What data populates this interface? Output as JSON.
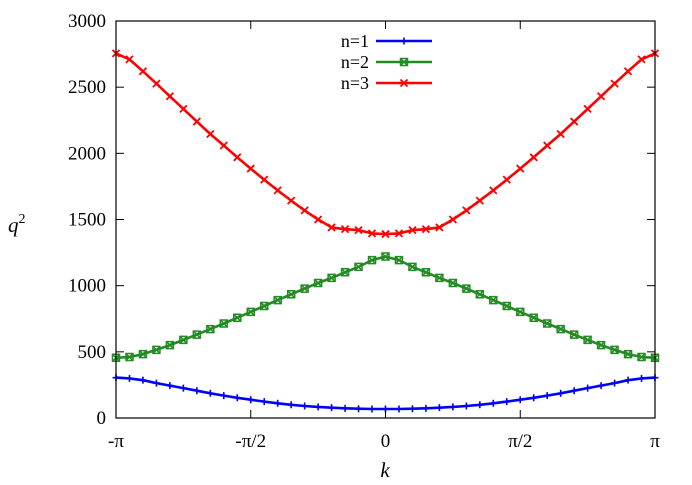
{
  "chart_data": {
    "type": "line",
    "title": "",
    "xlabel": "k",
    "ylabel": "q",
    "ylabel_superscript": "2",
    "xlim": [
      -3.14159,
      3.14159
    ],
    "ylim": [
      0,
      3000
    ],
    "x_ticks": [
      {
        "value": -3.14159,
        "label": "-π"
      },
      {
        "value": -1.5708,
        "label": "-π/2"
      },
      {
        "value": 0,
        "label": "0"
      },
      {
        "value": 1.5708,
        "label": "π/2"
      },
      {
        "value": 3.14159,
        "label": "π"
      }
    ],
    "y_ticks": [
      0,
      500,
      1000,
      1500,
      2000,
      2500,
      3000
    ],
    "grid": false,
    "legend_position": "top-center",
    "series": [
      {
        "name": "n=1",
        "color": "#0000ff",
        "marker": "plus",
        "values_at_pi": 305,
        "value_at_zero": 68
      },
      {
        "name": "n=2",
        "color": "#228b22",
        "marker": "boxed-x",
        "values_at_pi": 455,
        "value_at_zero": 1220
      },
      {
        "name": "n=3",
        "color": "#ff0000",
        "marker": "x",
        "values_at_pi": 2755,
        "value_at_zero": 1390
      }
    ],
    "x": [
      -3.1416,
      -2.9845,
      -2.8274,
      -2.6704,
      -2.5133,
      -2.3562,
      -2.1991,
      -2.042,
      -1.885,
      -1.7279,
      -1.5708,
      -1.4137,
      -1.2566,
      -1.0996,
      -0.9425,
      -0.7854,
      -0.6283,
      -0.4712,
      -0.3142,
      -0.1571,
      0.0,
      0.1571,
      0.3142,
      0.4712,
      0.6283,
      0.7854,
      0.9425,
      1.0996,
      1.2566,
      1.4137,
      1.5708,
      1.7279,
      1.885,
      2.042,
      2.1991,
      2.3562,
      2.5133,
      2.6704,
      2.8274,
      2.9845,
      3.1416
    ],
    "y": {
      "n=1": [
        305,
        299,
        286,
        264,
        245,
        226,
        206,
        187,
        169,
        153,
        138,
        124,
        111,
        100,
        91,
        84,
        78,
        73,
        70,
        68,
        68,
        68,
        70,
        73,
        78,
        84,
        91,
        100,
        111,
        124,
        138,
        153,
        169,
        187,
        206,
        226,
        245,
        264,
        286,
        299,
        305
      ],
      "n=2": [
        455,
        461,
        483,
        515,
        551,
        590,
        630,
        672,
        714,
        758,
        802,
        846,
        891,
        935,
        978,
        1020,
        1059,
        1101,
        1142,
        1193,
        1220,
        1193,
        1142,
        1101,
        1059,
        1020,
        978,
        935,
        891,
        846,
        802,
        758,
        714,
        672,
        630,
        590,
        551,
        515,
        483,
        461,
        455
      ],
      "n=3": [
        2755,
        2710,
        2620,
        2527,
        2431,
        2336,
        2240,
        2146,
        2059,
        1970,
        1885,
        1801,
        1720,
        1643,
        1569,
        1500,
        1440,
        1427,
        1420,
        1395,
        1390,
        1395,
        1420,
        1427,
        1440,
        1500,
        1569,
        1643,
        1720,
        1801,
        1885,
        1970,
        2059,
        2146,
        2240,
        2336,
        2431,
        2527,
        2620,
        2710,
        2755
      ]
    }
  }
}
